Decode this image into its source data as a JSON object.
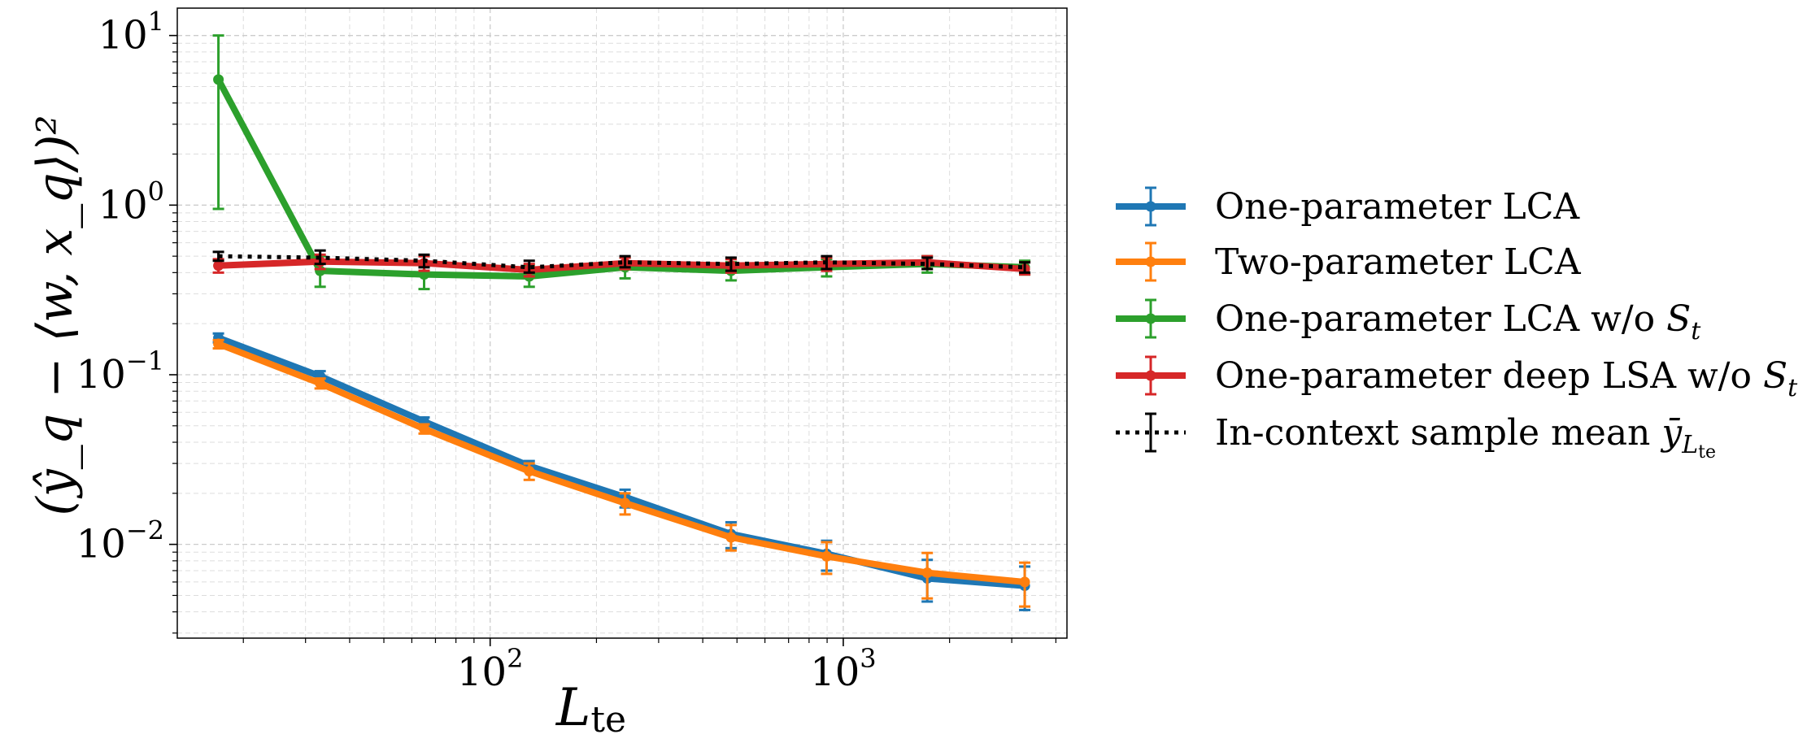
{
  "chart_data": {
    "type": "line",
    "xscale": "log",
    "yscale": "log",
    "xlim": [
      13,
      4300
    ],
    "ylim": [
      0.0028,
      14.5
    ],
    "xlabel": "L",
    "xlabel_sub": "te",
    "ylabel": "(ŷ_q − ⟨w, x_q⟩)²",
    "grid": true,
    "x_ticks": [
      {
        "value": 100,
        "base": "10",
        "exp": "2"
      },
      {
        "value": 1000,
        "base": "10",
        "exp": "3"
      }
    ],
    "y_ticks": [
      {
        "value": 0.01,
        "base": "10",
        "exp": "−2"
      },
      {
        "value": 0.1,
        "base": "10",
        "exp": "−1"
      },
      {
        "value": 1,
        "base": "10",
        "exp": "0"
      },
      {
        "value": 10,
        "base": "10",
        "exp": "1"
      }
    ],
    "x": [
      17,
      33,
      65,
      129,
      241,
      481,
      897,
      1729,
      3265
    ],
    "legend_position": "right",
    "series": [
      {
        "name": "One-parameter LCA",
        "label": "One-parameter LCA",
        "color": "#1f77b4",
        "style": "solid",
        "values": [
          0.165,
          0.098,
          0.053,
          0.029,
          0.019,
          0.0115,
          0.0088,
          0.0063,
          0.0057
        ],
        "err_low": [
          0.155,
          0.093,
          0.05,
          0.027,
          0.0165,
          0.0095,
          0.007,
          0.0046,
          0.0041
        ],
        "err_high": [
          0.175,
          0.105,
          0.056,
          0.031,
          0.021,
          0.0135,
          0.0105,
          0.0081,
          0.0074
        ]
      },
      {
        "name": "Two-parameter LCA",
        "label": "Two-parameter LCA",
        "color": "#ff7f0e",
        "style": "solid",
        "values": [
          0.152,
          0.089,
          0.048,
          0.027,
          0.0175,
          0.011,
          0.0085,
          0.0068,
          0.006
        ],
        "err_low": [
          0.143,
          0.083,
          0.045,
          0.024,
          0.015,
          0.0092,
          0.0067,
          0.0048,
          0.0043
        ],
        "err_high": [
          0.16,
          0.095,
          0.051,
          0.03,
          0.02,
          0.013,
          0.0103,
          0.0089,
          0.0078
        ]
      },
      {
        "name": "One-parameter LCA w/o S_t",
        "label_prefix": "One-parameter LCA w/o ",
        "label_math": "S",
        "label_sub": "t",
        "color": "#2ca02c",
        "style": "solid",
        "values": [
          5.5,
          0.41,
          0.39,
          0.38,
          0.43,
          0.41,
          0.43,
          0.45,
          0.43
        ],
        "err_low": [
          0.95,
          0.33,
          0.32,
          0.33,
          0.37,
          0.36,
          0.38,
          0.4,
          0.39
        ],
        "err_high": [
          10.0,
          0.5,
          0.46,
          0.44,
          0.49,
          0.46,
          0.48,
          0.5,
          0.47
        ]
      },
      {
        "name": "One-parameter deep LSA w/o S_t",
        "label_prefix": "One-parameter deep LSA w/o ",
        "label_math": "S",
        "label_sub": "t",
        "color": "#d62728",
        "style": "solid",
        "values": [
          0.44,
          0.465,
          0.455,
          0.415,
          0.455,
          0.44,
          0.45,
          0.46,
          0.42
        ],
        "err_low": [
          0.4,
          0.42,
          0.41,
          0.38,
          0.42,
          0.4,
          0.41,
          0.42,
          0.39
        ],
        "err_high": [
          0.48,
          0.51,
          0.5,
          0.45,
          0.49,
          0.48,
          0.49,
          0.5,
          0.46
        ]
      },
      {
        "name": "In-context sample mean ȳ_L_te",
        "label_prefix": "In-context sample mean ",
        "label_math": "ȳ",
        "label_sub": "L",
        "label_subsub": "te",
        "color": "#000000",
        "style": "dotted",
        "values": [
          0.5,
          0.49,
          0.47,
          0.43,
          0.46,
          0.45,
          0.46,
          0.45,
          0.43
        ],
        "err_low": [
          0.47,
          0.45,
          0.43,
          0.4,
          0.43,
          0.41,
          0.42,
          0.42,
          0.4
        ],
        "err_high": [
          0.53,
          0.54,
          0.51,
          0.47,
          0.5,
          0.49,
          0.5,
          0.49,
          0.46
        ]
      }
    ]
  }
}
